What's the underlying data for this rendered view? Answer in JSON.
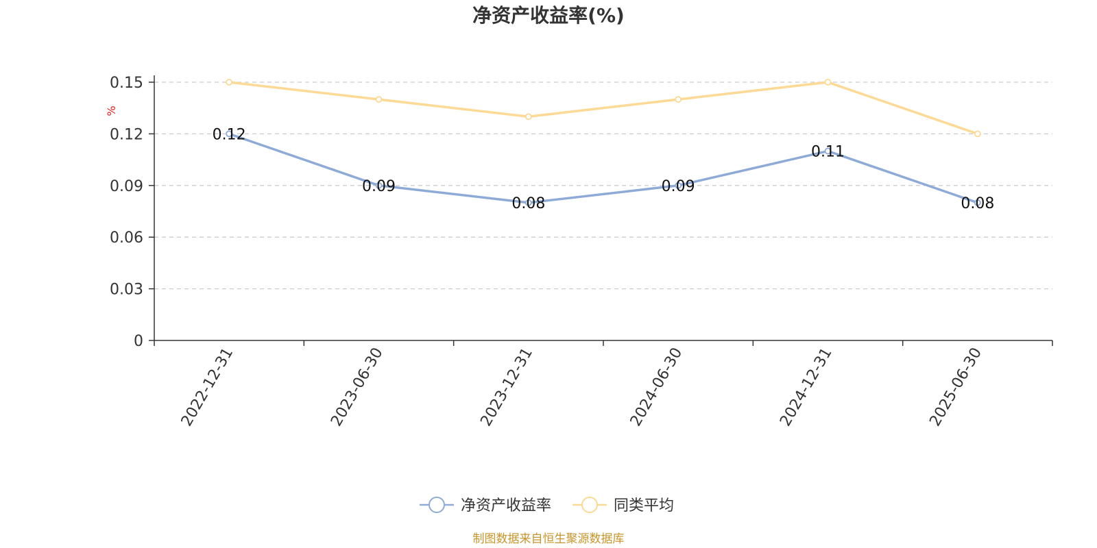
{
  "chart_data": {
    "type": "line",
    "title": "净资产收益率(%)",
    "ylabel": "%",
    "categories": [
      "2022-12-31",
      "2023-06-30",
      "2023-12-31",
      "2024-06-30",
      "2024-12-31",
      "2025-06-30"
    ],
    "ylim": [
      0,
      0.15
    ],
    "yticks": [
      0,
      0.03,
      0.06,
      0.09,
      0.12,
      0.15
    ],
    "ytick_labels": [
      "0",
      "0.03",
      "0.06",
      "0.09",
      "0.12",
      "0.15"
    ],
    "grid": true,
    "legend_position": "bottom",
    "series": [
      {
        "name": "净资产收益率",
        "values": [
          0.12,
          0.09,
          0.08,
          0.09,
          0.11,
          0.08
        ],
        "labels": [
          "0.12",
          "0.09",
          "0.08",
          "0.09",
          "0.11",
          "0.08"
        ],
        "color": "#8eaad6",
        "show_labels": true
      },
      {
        "name": "同类平均",
        "values": [
          0.15,
          0.14,
          0.13,
          0.14,
          0.15,
          0.12
        ],
        "color": "#fcd994",
        "show_labels": false
      }
    ]
  },
  "footer": {
    "source": "制图数据来自恒生聚源数据库"
  },
  "colors": {
    "grid": "#cccccc",
    "axis": "#333333",
    "source": "#c8952a",
    "unit": "#e02020"
  }
}
